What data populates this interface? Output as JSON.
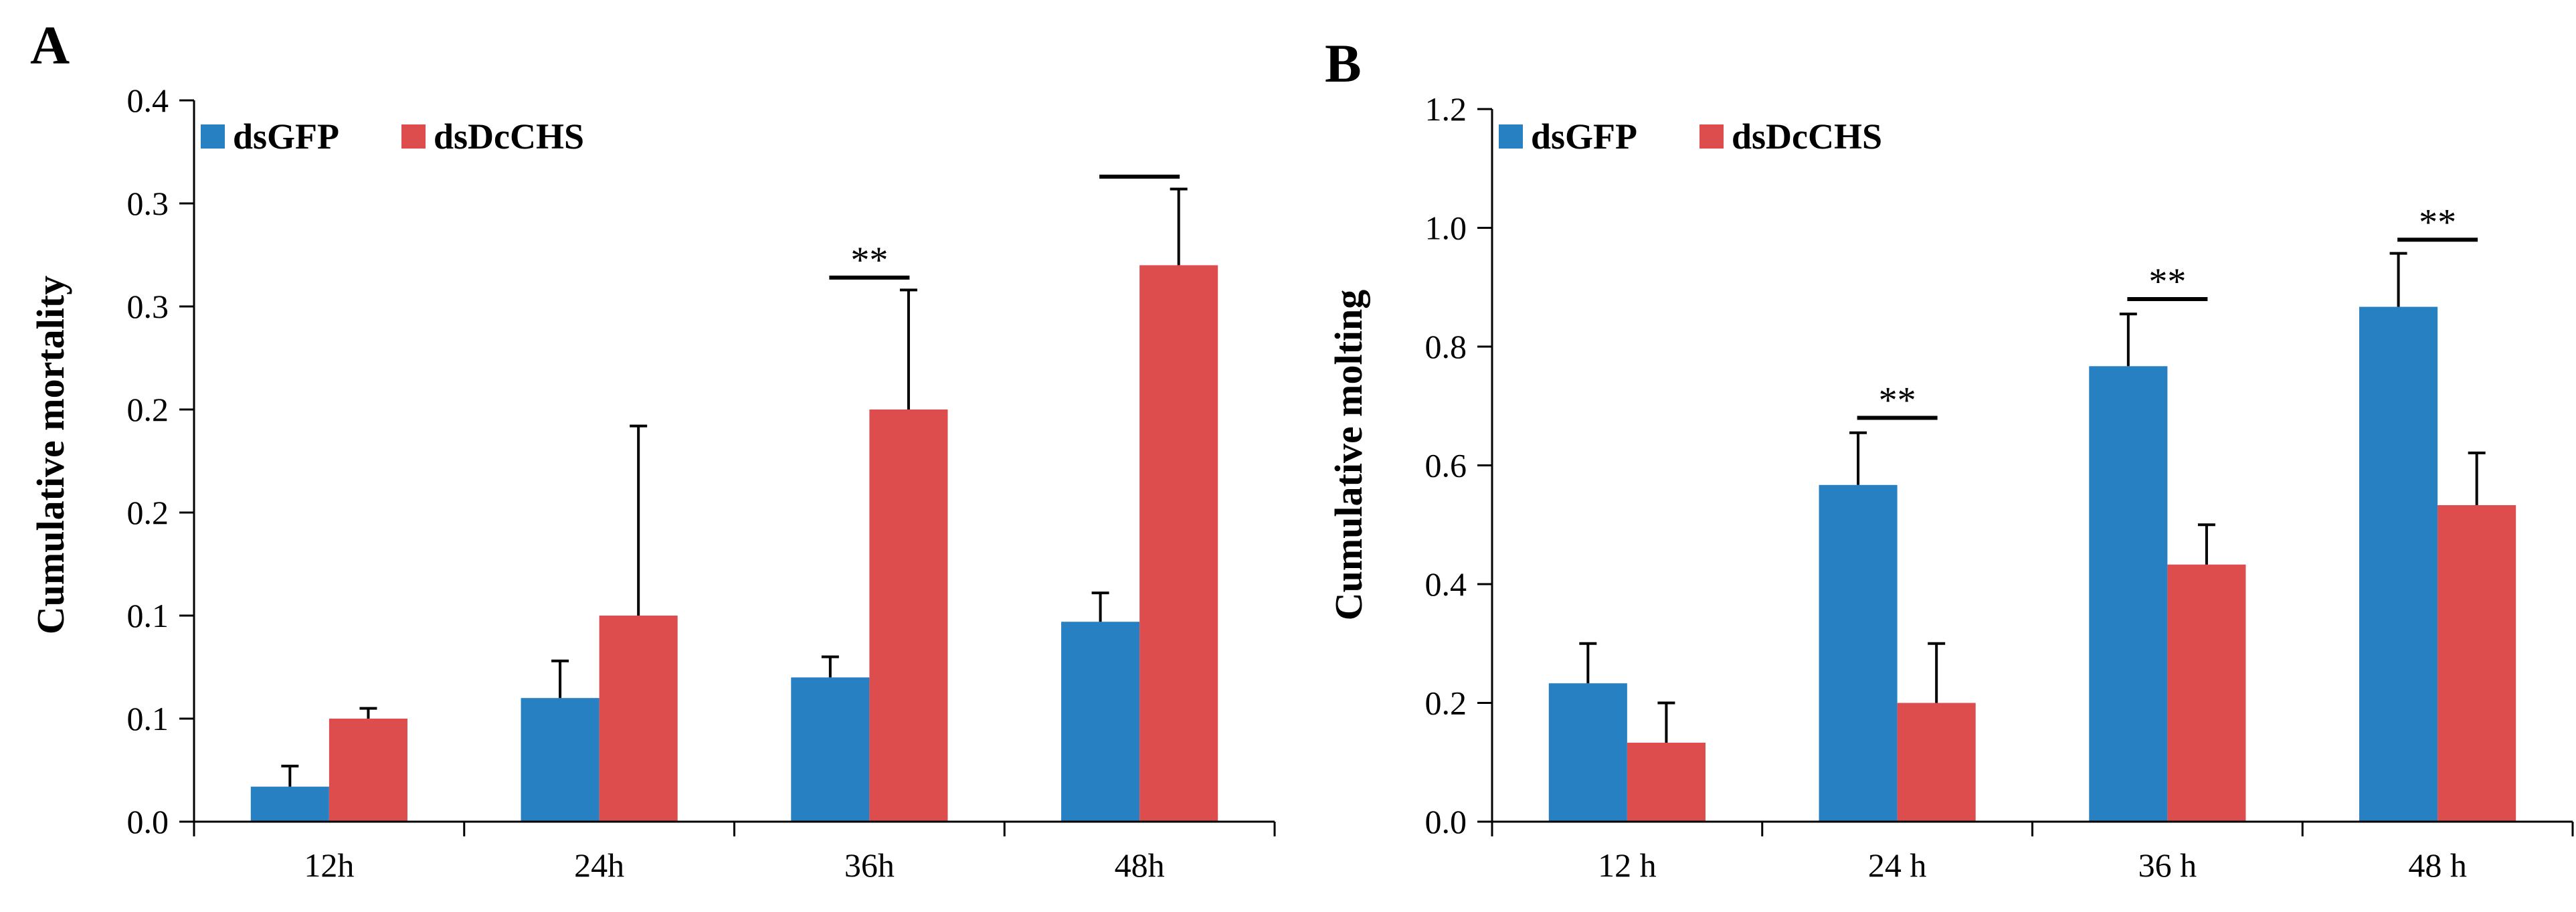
{
  "chart_data": [
    {
      "panel": "A",
      "type": "bar",
      "categories": [
        "12h",
        "24h",
        "36h",
        "48h"
      ],
      "series": [
        {
          "name": "dsGFP",
          "color": "#2680C2",
          "values": [
            0.017,
            0.06,
            0.07,
            0.097
          ],
          "errors": [
            0.01,
            0.018,
            0.01,
            0.014
          ]
        },
        {
          "name": "dsDcCHS",
          "color": "#DE4D4D",
          "values": [
            0.05,
            0.1,
            0.2,
            0.27
          ],
          "errors": [
            0.005,
            0.092,
            0.058,
            0.037
          ]
        }
      ],
      "ylabel": "Cumulative mortality",
      "xlabel": "",
      "ylim": [
        0,
        0.35
      ],
      "ytick_values": [
        0,
        0.05,
        0.1,
        0.15,
        0.2,
        0.25,
        0.3,
        0.35
      ],
      "ytick_labels": [
        "0.0",
        "0.1",
        "0.1",
        "0.2",
        "0.2",
        "0.3",
        "0.3",
        "0.4"
      ],
      "significance": [
        {
          "category": "36h",
          "text": "**",
          "y": 0.264
        },
        {
          "category": "48h",
          "text": "",
          "y": 0.313
        }
      ],
      "legend_position": "top-left"
    },
    {
      "panel": "B",
      "type": "bar",
      "categories": [
        "12 h",
        "24 h",
        "36 h",
        "48 h"
      ],
      "series": [
        {
          "name": "dsGFP",
          "color": "#2680C2",
          "values": [
            0.233,
            0.567,
            0.767,
            0.867
          ],
          "errors": [
            0.067,
            0.088,
            0.088,
            0.09
          ]
        },
        {
          "name": "dsDcCHS",
          "color": "#DE4D4D",
          "values": [
            0.133,
            0.2,
            0.433,
            0.533
          ],
          "errors": [
            0.067,
            0.1,
            0.067,
            0.088
          ]
        }
      ],
      "ylabel": "Cumulative molting",
      "xlabel": "",
      "ylim": [
        0,
        1.2
      ],
      "ytick_values": [
        0,
        0.2,
        0.4,
        0.6,
        0.8,
        1.0,
        1.2
      ],
      "ytick_labels": [
        "0.0",
        "0.2",
        "0.4",
        "0.6",
        "0.8",
        "1.0",
        "1.2"
      ],
      "significance": [
        {
          "category": "24 h",
          "text": "**",
          "y": 0.68
        },
        {
          "category": "36 h",
          "text": "**",
          "y": 0.88
        },
        {
          "category": "48 h",
          "text": "**",
          "y": 0.98
        }
      ],
      "legend_position": "top-left"
    }
  ]
}
